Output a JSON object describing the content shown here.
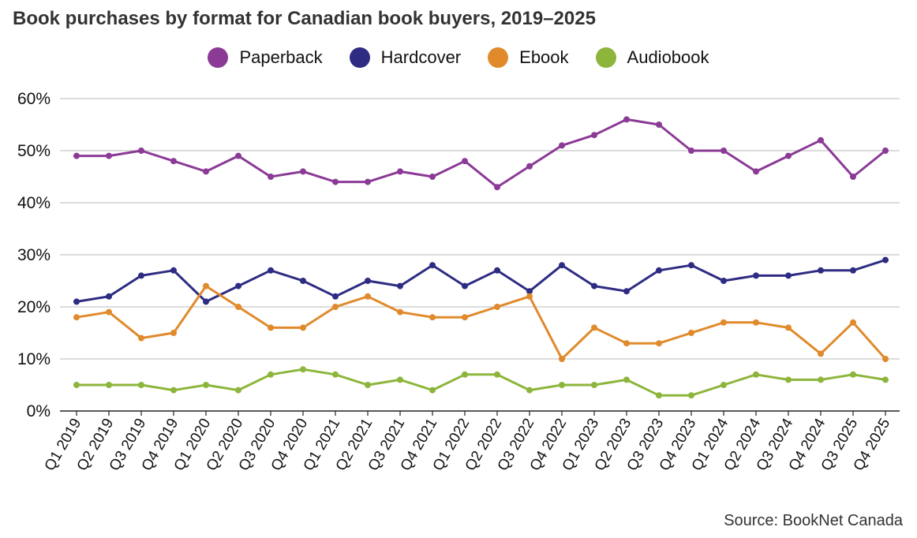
{
  "title": "Book purchases by format for Canadian book buyers, 2019–2025",
  "source": "Source: BookNet Canada",
  "chart_data": {
    "type": "line",
    "title": "Book purchases by format for Canadian book buyers, 2019–2025",
    "xlabel": "",
    "ylabel": "",
    "ylim": [
      0,
      60
    ],
    "y_ticks": [
      0,
      10,
      20,
      30,
      40,
      50,
      60
    ],
    "y_tick_labels": [
      "0%",
      "10%",
      "20%",
      "30%",
      "40%",
      "50%",
      "60%"
    ],
    "grid": true,
    "legend_position": "top-center",
    "categories": [
      "Q1 2019",
      "Q2 2019",
      "Q3 2019",
      "Q4 2019",
      "Q1 2020",
      "Q2 2020",
      "Q3 2020",
      "Q4 2020",
      "Q1 2021",
      "Q2 2021",
      "Q3 2021",
      "Q4 2021",
      "Q1 2022",
      "Q2 2022",
      "Q3 2022",
      "Q4 2022",
      "Q1 2023",
      "Q2 2023",
      "Q3 2023",
      "Q4 2023",
      "Q1 2024",
      "Q2 2024",
      "Q3 2024",
      "Q4 2024",
      "Q3 2025",
      "Q4 2025"
    ],
    "series": [
      {
        "name": "Paperback",
        "color": "#8B3A96",
        "values": [
          49,
          49,
          50,
          48,
          46,
          49,
          45,
          46,
          44,
          44,
          46,
          45,
          48,
          43,
          47,
          51,
          53,
          56,
          55,
          50,
          50,
          46,
          49,
          52,
          45,
          50
        ]
      },
      {
        "name": "Hardcover",
        "color": "#2E2C82",
        "values": [
          21,
          22,
          26,
          27,
          21,
          24,
          27,
          25,
          22,
          25,
          24,
          28,
          24,
          27,
          23,
          28,
          24,
          23,
          27,
          28,
          25,
          26,
          26,
          27,
          27,
          29
        ]
      },
      {
        "name": "Ebook",
        "color": "#E08A2C",
        "values": [
          18,
          19,
          14,
          15,
          24,
          20,
          16,
          16,
          20,
          22,
          19,
          18,
          18,
          20,
          22,
          10,
          16,
          13,
          13,
          15,
          17,
          17,
          16,
          11,
          17,
          10
        ]
      },
      {
        "name": "Audiobook",
        "color": "#8DB53C",
        "values": [
          5,
          5,
          5,
          4,
          5,
          4,
          7,
          8,
          7,
          5,
          6,
          4,
          7,
          7,
          4,
          5,
          5,
          6,
          3,
          3,
          5,
          7,
          6,
          6,
          7,
          6
        ]
      }
    ]
  }
}
